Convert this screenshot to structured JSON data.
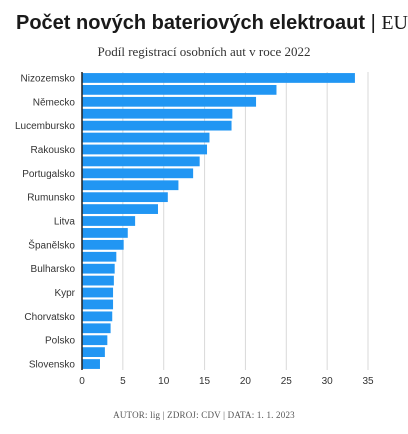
{
  "header": {
    "title": "Počet nových bateriových elektroaut",
    "separator": "|",
    "title_tag": "EU",
    "subtitle": "Podíl registrací osobních aut v roce 2022"
  },
  "footer": {
    "credit": "AUTOR: lig | ZDROJ: CDV | DATA: 1. 1. 2023"
  },
  "chart_data": {
    "type": "bar",
    "orientation": "horizontal",
    "title": "Počet nových bateriových elektroaut | EU",
    "subtitle": "Podíl registrací osobních aut v roce 2022",
    "bar_color": "#2196f3",
    "categories": [
      "Nizozemsko",
      "",
      "Německo",
      "",
      "Lucembursko",
      "",
      "Rakousko",
      "",
      "Portugalsko",
      "",
      "Rumunsko",
      "",
      "Litva",
      "",
      "Španělsko",
      "",
      "Bulharsko",
      "",
      "Kypr",
      "",
      "Chorvatsko",
      "",
      "Polsko",
      "",
      "Slovensko"
    ],
    "values": [
      33.4,
      23.8,
      21.3,
      18.4,
      18.3,
      15.6,
      15.3,
      14.4,
      13.6,
      11.8,
      10.5,
      9.3,
      6.5,
      5.6,
      5.1,
      4.2,
      4.0,
      3.9,
      3.8,
      3.8,
      3.7,
      3.5,
      3.1,
      2.8,
      2.2
    ],
    "xlim": [
      0,
      35
    ],
    "xticks": [
      0,
      5,
      10,
      15,
      20,
      25,
      30,
      35
    ],
    "grid": "vertical",
    "xlabel": "",
    "ylabel": ""
  }
}
